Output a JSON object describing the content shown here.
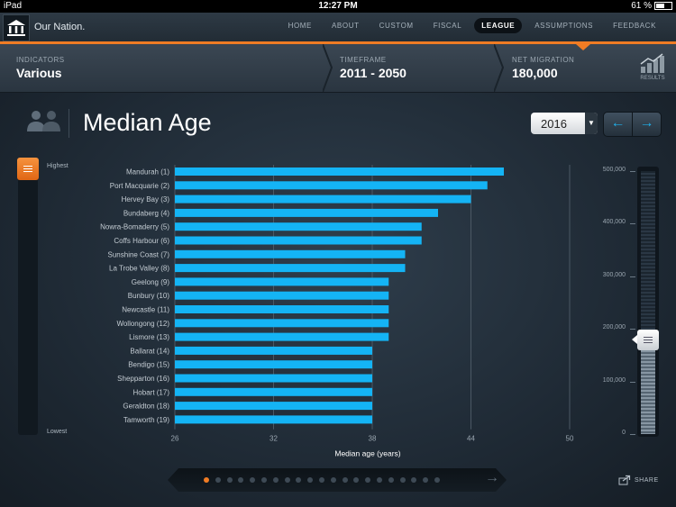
{
  "status_bar": {
    "device": "iPad",
    "time": "12:27 PM",
    "battery": "61 %",
    "battery_level": 0.61
  },
  "nav": {
    "brand": "Our Nation.",
    "tabs": [
      "HOME",
      "ABOUT",
      "CUSTOM",
      "FISCAL",
      "LEAGUE",
      "ASSUMPTIONS",
      "FEEDBACK"
    ],
    "active_tab": "LEAGUE"
  },
  "indicators": {
    "indicators_label": "INDICATORS",
    "indicators_value": "Various",
    "timeframe_label": "TIMEFRAME",
    "timeframe_value": "2011 - 2050",
    "migration_label": "NET MIGRATION",
    "migration_value": "180,000",
    "results_label": "RESULTS"
  },
  "page": {
    "title": "Median Age",
    "year": "2016"
  },
  "left_slider": {
    "top_label": "Highest",
    "bottom_label": "Lowest"
  },
  "chart_data": {
    "type": "bar",
    "orientation": "horizontal",
    "title": "Median Age",
    "xlabel": "Median age (years)",
    "ylabel": "",
    "xlim": [
      26,
      50
    ],
    "xticks": [
      26,
      32,
      38,
      44,
      50
    ],
    "grid": true,
    "bar_color": "#14b4f5",
    "categories": [
      "Mandurah (1)",
      "Port Macquarie (2)",
      "Hervey Bay (3)",
      "Bundaberg (4)",
      "Nowra-Bomaderry (5)",
      "Coffs Harbour (6)",
      "Sunshine Coast (7)",
      "La Trobe Valley (8)",
      "Geelong (9)",
      "Bunbury (10)",
      "Newcastle (11)",
      "Wollongong (12)",
      "Lismore (13)",
      "Ballarat (14)",
      "Bendigo (15)",
      "Shepparton (16)",
      "Hobart (17)",
      "Geraldton (18)",
      "Tamworth (19)"
    ],
    "values": [
      46,
      45,
      44,
      42,
      41,
      41,
      40,
      40,
      39,
      39,
      39,
      39,
      39,
      38,
      38,
      38,
      38,
      38,
      38
    ]
  },
  "net_migration_slider": {
    "ticks": [
      "500,000",
      "400,000",
      "300,000",
      "200,000",
      "100,000",
      "0"
    ],
    "tick_values": [
      500000,
      400000,
      300000,
      200000,
      100000,
      0
    ],
    "value": 180000
  },
  "pager": {
    "count": 21,
    "active_index": 0,
    "next_icon": "right-arrow-icon"
  },
  "share": {
    "label": "SHARE"
  },
  "colors": {
    "accent": "#f07c24",
    "bar": "#14b4f5",
    "nav_arrow": "#1fb0ea"
  }
}
